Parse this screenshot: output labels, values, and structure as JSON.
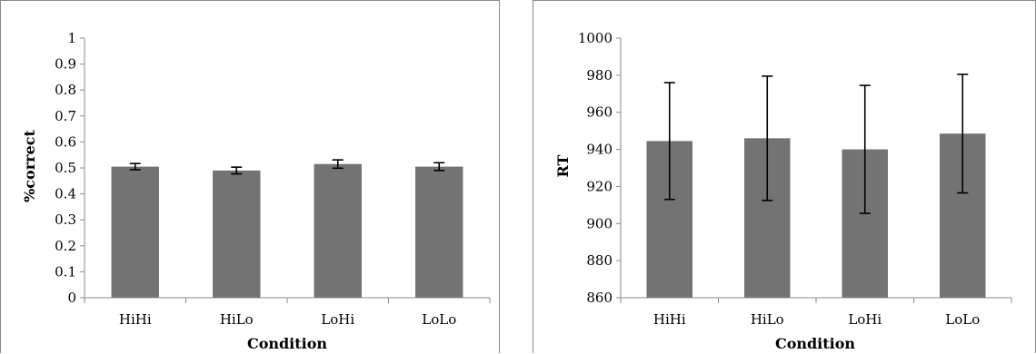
{
  "chart_data": [
    {
      "type": "bar",
      "categories": [
        "HiHi",
        "HiLo",
        "LoHi",
        "LoLo"
      ],
      "values": [
        0.505,
        0.49,
        0.515,
        0.505
      ],
      "error": [
        0.012,
        0.013,
        0.016,
        0.015
      ],
      "xlabel": "Condition",
      "ylabel": "%correct",
      "ylim": [
        0,
        1
      ],
      "yticks": [
        "0",
        "0.1",
        "0.2",
        "0.3",
        "0.4",
        "0.5",
        "0.6",
        "0.7",
        "0.8",
        "0.9",
        "1"
      ],
      "grid": false,
      "bar_color": "#737373"
    },
    {
      "type": "bar",
      "categories": [
        "HiHi",
        "HiLo",
        "LoHi",
        "LoLo"
      ],
      "values": [
        944.5,
        946,
        940,
        948.5
      ],
      "error": [
        31.5,
        33.5,
        34.5,
        32
      ],
      "xlabel": "Condition",
      "ylabel": "RT",
      "ylim": [
        860,
        1000
      ],
      "yticks": [
        "860",
        "880",
        "900",
        "920",
        "940",
        "960",
        "980",
        "1000"
      ],
      "grid": false,
      "bar_color": "#737373"
    }
  ]
}
